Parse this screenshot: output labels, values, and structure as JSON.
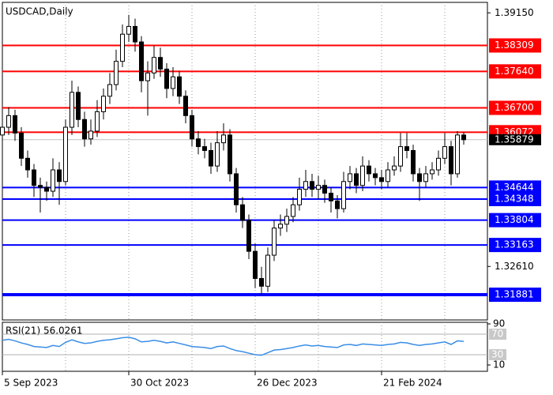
{
  "chart_data": {
    "type": "candlestick",
    "title": "USDCAD,Daily",
    "categories": [
      "5 Sep 2023",
      null,
      null,
      null,
      null,
      null,
      null,
      null,
      null,
      null,
      null,
      null,
      null,
      null,
      null,
      null,
      null,
      null,
      null,
      null,
      "30 Oct 2023",
      null,
      null,
      null,
      null,
      null,
      null,
      null,
      null,
      null,
      null,
      null,
      null,
      null,
      null,
      null,
      null,
      null,
      null,
      null,
      "26 Dec 2023",
      null,
      null,
      null,
      null,
      null,
      null,
      null,
      null,
      null,
      null,
      null,
      null,
      null,
      null,
      null,
      null,
      null,
      null,
      null,
      "21 Feb 2024",
      null,
      null,
      null,
      null,
      null,
      null,
      null,
      null,
      null,
      null,
      null,
      null,
      null
    ],
    "ohlc": [
      [
        1.36,
        1.364,
        1.358,
        1.362
      ],
      [
        1.362,
        1.3672,
        1.36,
        1.365
      ],
      [
        1.365,
        1.3665,
        1.3585,
        1.3605
      ],
      [
        1.3605,
        1.362,
        1.352,
        1.354
      ],
      [
        1.354,
        1.356,
        1.349,
        1.351
      ],
      [
        1.351,
        1.3525,
        1.344,
        1.347
      ],
      [
        1.347,
        1.349,
        1.34,
        1.3465
      ],
      [
        1.3465,
        1.348,
        1.343,
        1.3455
      ],
      [
        1.3455,
        1.354,
        1.344,
        1.351
      ],
      [
        1.351,
        1.353,
        1.342,
        1.348
      ],
      [
        1.348,
        1.364,
        1.347,
        1.362
      ],
      [
        1.362,
        1.374,
        1.36,
        1.371
      ],
      [
        1.371,
        1.3725,
        1.362,
        1.364
      ],
      [
        1.364,
        1.366,
        1.357,
        1.359
      ],
      [
        1.359,
        1.364,
        1.3575,
        1.361
      ],
      [
        1.361,
        1.369,
        1.3595,
        1.366
      ],
      [
        1.366,
        1.372,
        1.364,
        1.37
      ],
      [
        1.37,
        1.376,
        1.368,
        1.373
      ],
      [
        1.373,
        1.382,
        1.3715,
        1.379
      ],
      [
        1.379,
        1.3885,
        1.3775,
        1.386
      ],
      [
        1.386,
        1.391,
        1.384,
        1.388
      ],
      [
        1.388,
        1.39,
        1.3815,
        1.384
      ],
      [
        1.384,
        1.3855,
        1.371,
        1.374
      ],
      [
        1.374,
        1.379,
        1.365,
        1.376
      ],
      [
        1.376,
        1.383,
        1.3745,
        1.38
      ],
      [
        1.38,
        1.3825,
        1.375,
        1.377
      ],
      [
        1.377,
        1.3785,
        1.3695,
        1.372
      ],
      [
        1.372,
        1.3775,
        1.37,
        1.375
      ],
      [
        1.375,
        1.3765,
        1.368,
        1.37
      ],
      [
        1.37,
        1.3715,
        1.363,
        1.365
      ],
      [
        1.365,
        1.3665,
        1.357,
        1.359
      ],
      [
        1.359,
        1.361,
        1.355,
        1.357
      ],
      [
        1.357,
        1.359,
        1.354,
        1.356
      ],
      [
        1.356,
        1.358,
        1.35,
        1.352
      ],
      [
        1.352,
        1.361,
        1.3505,
        1.358
      ],
      [
        1.358,
        1.363,
        1.356,
        1.36
      ],
      [
        1.36,
        1.3615,
        1.348,
        1.35
      ],
      [
        1.35,
        1.3515,
        1.34,
        1.342
      ],
      [
        1.342,
        1.344,
        1.336,
        1.338
      ],
      [
        1.338,
        1.3395,
        1.328,
        1.33
      ],
      [
        1.33,
        1.332,
        1.3205,
        1.323
      ],
      [
        1.323,
        1.326,
        1.3188,
        1.321
      ],
      [
        1.321,
        1.331,
        1.3195,
        1.329
      ],
      [
        1.329,
        1.338,
        1.3275,
        1.336
      ],
      [
        1.336,
        1.3395,
        1.334,
        1.337
      ],
      [
        1.337,
        1.341,
        1.335,
        1.339
      ],
      [
        1.339,
        1.344,
        1.3375,
        1.342
      ],
      [
        1.342,
        1.349,
        1.3405,
        1.346
      ],
      [
        1.346,
        1.351,
        1.344,
        1.348
      ],
      [
        1.348,
        1.35,
        1.344,
        1.346
      ],
      [
        1.346,
        1.3495,
        1.3435,
        1.347
      ],
      [
        1.347,
        1.3485,
        1.3425,
        1.345
      ],
      [
        1.345,
        1.3465,
        1.34,
        1.343
      ],
      [
        1.343,
        1.3445,
        1.3385,
        1.341
      ],
      [
        1.341,
        1.3505,
        1.34,
        1.348
      ],
      [
        1.348,
        1.352,
        1.346,
        1.35
      ],
      [
        1.35,
        1.3515,
        1.345,
        1.347
      ],
      [
        1.347,
        1.3545,
        1.3455,
        1.352
      ],
      [
        1.352,
        1.3535,
        1.348,
        1.35
      ],
      [
        1.35,
        1.3515,
        1.347,
        1.349
      ],
      [
        1.349,
        1.351,
        1.346,
        1.348
      ],
      [
        1.348,
        1.353,
        1.3465,
        1.351
      ],
      [
        1.351,
        1.3545,
        1.3495,
        1.352
      ],
      [
        1.352,
        1.3605,
        1.3505,
        1.357
      ],
      [
        1.357,
        1.3605,
        1.354,
        1.356
      ],
      [
        1.356,
        1.3575,
        1.348,
        1.35
      ],
      [
        1.35,
        1.3515,
        1.343,
        1.348
      ],
      [
        1.348,
        1.352,
        1.3465,
        1.35
      ],
      [
        1.35,
        1.353,
        1.3485,
        1.351
      ],
      [
        1.351,
        1.356,
        1.3495,
        1.354
      ],
      [
        1.354,
        1.3605,
        1.3525,
        1.357
      ],
      [
        1.357,
        1.3585,
        1.347,
        1.35
      ],
      [
        1.35,
        1.361,
        1.349,
        1.36
      ],
      [
        1.36,
        1.3608,
        1.3575,
        1.35879
      ]
    ],
    "ylim": [
      1.3942,
      1.3123
    ],
    "yticks": [
      {
        "value": 1.3915,
        "label": "1.39150"
      },
      {
        "value": 1.3261,
        "label": "1.32610"
      }
    ],
    "current_price": {
      "value": 1.35879,
      "label": "1.35879"
    },
    "grid": true,
    "levels": [
      {
        "value": 1.38309,
        "label": "1.38309",
        "color": "#ff0000"
      },
      {
        "value": 1.3764,
        "label": "1.37640",
        "color": "#ff0000"
      },
      {
        "value": 1.367,
        "label": "1.36700",
        "color": "#ff0000"
      },
      {
        "value": 1.36072,
        "label": "1.36072",
        "color": "#ff0000"
      },
      {
        "value": 1.34644,
        "label": "1.34644",
        "color": "#0000ff"
      },
      {
        "value": 1.34348,
        "label": "1.34348",
        "color": "#0000ff"
      },
      {
        "value": 1.33804,
        "label": "1.33804",
        "color": "#0000ff"
      },
      {
        "value": 1.33163,
        "label": "1.33163",
        "color": "#0000ff"
      },
      {
        "value": 1.31881,
        "label": "1.31881",
        "color": "#0000ff"
      }
    ],
    "rsi": {
      "label": "RSI(21) 56.0261",
      "color": "#3a8ee6",
      "ylim": [
        10,
        90
      ],
      "yticks": [
        90,
        10
      ],
      "levels": [
        70,
        30
      ],
      "values": [
        58,
        60,
        57,
        53,
        50,
        46,
        45,
        44,
        48,
        46,
        54,
        59,
        55,
        52,
        53,
        56,
        58,
        59,
        61,
        63,
        64,
        61,
        55,
        56,
        58,
        56,
        53,
        55,
        52,
        49,
        46,
        45,
        44,
        42,
        46,
        47,
        42,
        38,
        36,
        33,
        30,
        29,
        34,
        39,
        40,
        42,
        44,
        47,
        49,
        47,
        48,
        46,
        45,
        44,
        49,
        50,
        48,
        51,
        50,
        49,
        48,
        50,
        51,
        54,
        53,
        50,
        48,
        50,
        51,
        53,
        55,
        50,
        57,
        56.0261
      ]
    }
  }
}
